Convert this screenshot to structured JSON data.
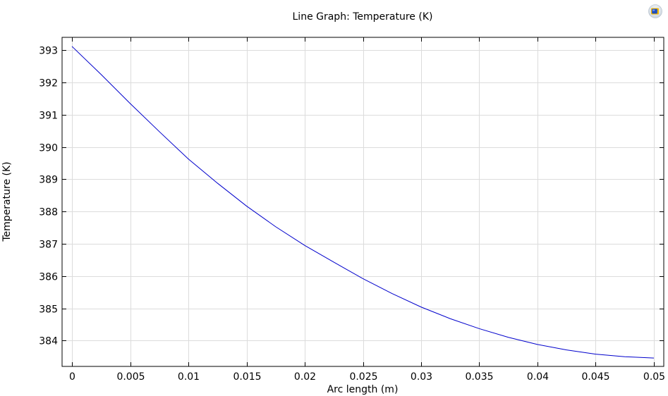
{
  "chart_data": {
    "type": "line",
    "title": "Line Graph: Temperature (K)",
    "xlabel": "Arc length (m)",
    "ylabel": "Temperature (K)",
    "xlim": [
      -0.00085,
      0.05085
    ],
    "ylim": [
      383.2,
      393.4
    ],
    "x_ticks": [
      0,
      0.005,
      0.01,
      0.015,
      0.02,
      0.025,
      0.03,
      0.035,
      0.04,
      0.045,
      0.05
    ],
    "x_tick_labels": [
      "0",
      "0.005",
      "0.01",
      "0.015",
      "0.02",
      "0.025",
      "0.03",
      "0.035",
      "0.04",
      "0.045",
      "0.05"
    ],
    "y_ticks": [
      384,
      385,
      386,
      387,
      388,
      389,
      390,
      391,
      392,
      393
    ],
    "y_tick_labels": [
      "384",
      "385",
      "386",
      "387",
      "388",
      "389",
      "390",
      "391",
      "392",
      "393"
    ],
    "grid": true,
    "series": [
      {
        "color": "#0000cc",
        "x": [
          0,
          0.0025,
          0.005,
          0.0075,
          0.01,
          0.0125,
          0.015,
          0.0175,
          0.02,
          0.0225,
          0.025,
          0.0275,
          0.03,
          0.0325,
          0.035,
          0.0375,
          0.04,
          0.0425,
          0.045,
          0.0475,
          0.05
        ],
        "y": [
          393.12,
          392.25,
          391.35,
          390.48,
          389.63,
          388.88,
          388.17,
          387.53,
          386.95,
          386.43,
          385.92,
          385.46,
          385.04,
          384.68,
          384.37,
          384.1,
          383.88,
          383.71,
          383.58,
          383.5,
          383.46
        ]
      }
    ]
  },
  "toolbar": {
    "logo_icon": "comsol-logo-icon"
  }
}
